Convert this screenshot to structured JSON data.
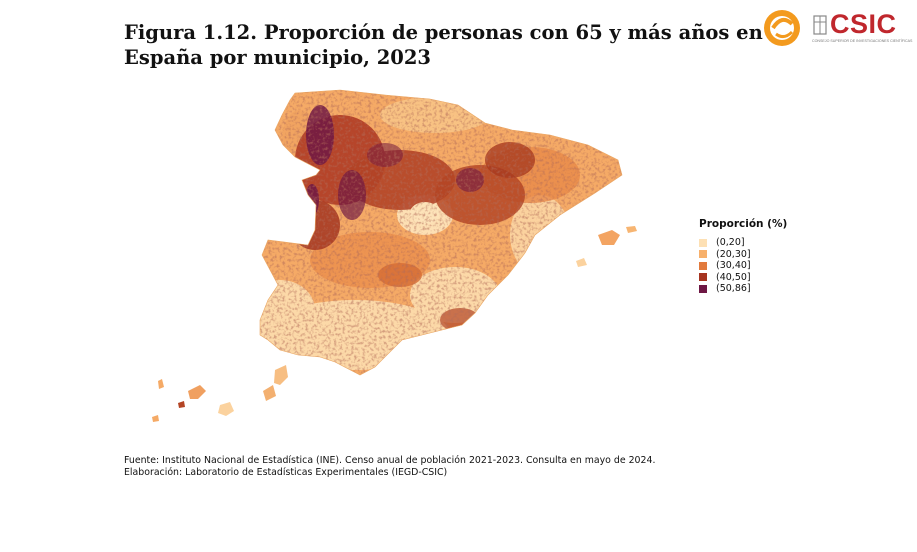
{
  "title": "Figura 1.12. Proporción de personas con 65 y más años en España por municipio, 2023",
  "logos": {
    "enr": "enr-logo",
    "csic": "CSIC",
    "csic_sub": "CONSEJO SUPERIOR DE INVESTIGACIONES CIENTÍFICAS"
  },
  "legend": {
    "title": "Proporción (%)",
    "items": [
      {
        "label": "(0,20]",
        "color": "#fde0b4"
      },
      {
        "label": "(20,30]",
        "color": "#f7b06b"
      },
      {
        "label": "(30,40]",
        "color": "#e27a3d"
      },
      {
        "label": "(40,50]",
        "color": "#a63420"
      },
      {
        "label": "(50,86]",
        "color": "#6e1744"
      }
    ]
  },
  "source": {
    "line1": "Fuente: Instituto Nacional de Estadística (INE). Censo anual de población 2021-2023. Consulta en mayo de 2024.",
    "line2": "Elaboración: Laboratorio de Estadísticas Experimentales (IEGD-CSIC)"
  }
}
